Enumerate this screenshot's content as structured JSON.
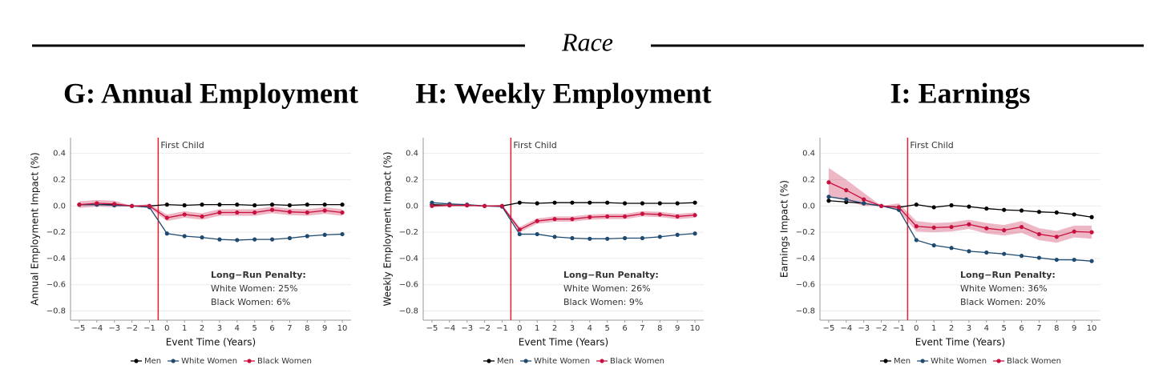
{
  "header": {
    "title": "Race"
  },
  "chart_data": [
    {
      "type": "line",
      "title": "G: Annual Employment",
      "x_label": "Event Time (Years)",
      "y_label": "Annual Employment Impact (%)",
      "x": [
        -5,
        -4,
        -3,
        -2,
        -1,
        0,
        1,
        2,
        3,
        4,
        5,
        6,
        7,
        8,
        9,
        10
      ],
      "xlim": [
        -5.5,
        10.5
      ],
      "ylim": [
        -0.87,
        0.52
      ],
      "xticks": [
        {
          "value": -5,
          "label": "−5"
        },
        {
          "value": -4,
          "label": "−4"
        },
        {
          "value": -3,
          "label": "−3"
        },
        {
          "value": -2,
          "label": "−2"
        },
        {
          "value": -1,
          "label": "−1"
        },
        0,
        1,
        2,
        3,
        4,
        5,
        6,
        7,
        8,
        9,
        10
      ],
      "yticks": [
        {
          "value": -0.8,
          "label": "−0.8"
        },
        {
          "value": -0.6,
          "label": "−0.6"
        },
        {
          "value": -0.4,
          "label": "−0.4"
        },
        {
          "value": -0.2,
          "label": "−0.2"
        },
        {
          "value": 0,
          "label": "0.0"
        },
        0.2,
        0.4
      ],
      "grid": true,
      "legend": "bottom",
      "event_line": {
        "x": -0.5,
        "label": "First Child",
        "color": "#e8202a"
      },
      "annotation": {
        "title": "Long−Run Penalty:",
        "lines": [
          "White Women: 25%",
          "Black Women: 6%"
        ]
      },
      "series": [
        {
          "name": "Men",
          "color": "#000000",
          "values": [
            0.01,
            0.01,
            0.01,
            0,
            0,
            0.01,
            0.005,
            0.01,
            0.01,
            0.01,
            0.005,
            0.01,
            0.005,
            0.01,
            0.01,
            0.01
          ]
        },
        {
          "name": "White Women",
          "color": "#1f4a70",
          "values": [
            0.01,
            0.01,
            0.005,
            0,
            -0.01,
            -0.21,
            -0.23,
            -0.24,
            -0.255,
            -0.26,
            -0.255,
            -0.255,
            -0.245,
            -0.23,
            -0.22,
            -0.215
          ]
        },
        {
          "name": "Black Women",
          "color": "#c8103e",
          "values": [
            0.01,
            0.02,
            0.015,
            0,
            0,
            -0.09,
            -0.065,
            -0.08,
            -0.05,
            -0.05,
            -0.05,
            -0.03,
            -0.045,
            -0.05,
            -0.035,
            -0.05
          ],
          "error": [
            0.025,
            0.025,
            0.025,
            0,
            0.015,
            0.025,
            0.025,
            0.025,
            0.025,
            0.025,
            0.025,
            0.025,
            0.025,
            0.025,
            0.025,
            0.025
          ]
        }
      ]
    },
    {
      "type": "line",
      "title": "H: Weekly Employment",
      "x_label": "Event Time (Years)",
      "y_label": "Weekly Employment Impact (%)",
      "x": [
        -5,
        -4,
        -3,
        -2,
        -1,
        0,
        1,
        2,
        3,
        4,
        5,
        6,
        7,
        8,
        9,
        10
      ],
      "xlim": [
        -5.5,
        10.5
      ],
      "ylim": [
        -0.87,
        0.52
      ],
      "xticks": [
        {
          "value": -5,
          "label": "−5"
        },
        {
          "value": -4,
          "label": "−4"
        },
        {
          "value": -3,
          "label": "−3"
        },
        {
          "value": -2,
          "label": "−2"
        },
        {
          "value": -1,
          "label": "−1"
        },
        0,
        1,
        2,
        3,
        4,
        5,
        6,
        7,
        8,
        9,
        10
      ],
      "yticks": [
        {
          "value": -0.8,
          "label": "−0.8"
        },
        {
          "value": -0.6,
          "label": "−0.6"
        },
        {
          "value": -0.4,
          "label": "−0.4"
        },
        {
          "value": -0.2,
          "label": "−0.2"
        },
        {
          "value": 0,
          "label": "0.0"
        },
        0.2,
        0.4
      ],
      "grid": true,
      "legend": "bottom",
      "event_line": {
        "x": -0.5,
        "label": "First Child",
        "color": "#e8202a"
      },
      "annotation": {
        "title": "Long−Run Penalty:",
        "lines": [
          "White Women: 26%",
          "Black Women: 9%"
        ]
      },
      "series": [
        {
          "name": "Men",
          "color": "#000000",
          "values": [
            0.01,
            0.005,
            0.005,
            0,
            0,
            0.025,
            0.02,
            0.025,
            0.025,
            0.025,
            0.025,
            0.02,
            0.02,
            0.02,
            0.02,
            0.025
          ]
        },
        {
          "name": "White Women",
          "color": "#1f4a70",
          "values": [
            0.025,
            0.015,
            0.01,
            0,
            -0.005,
            -0.215,
            -0.215,
            -0.235,
            -0.245,
            -0.25,
            -0.25,
            -0.245,
            -0.245,
            -0.235,
            -0.22,
            -0.21
          ]
        },
        {
          "name": "Black Women",
          "color": "#c8103e",
          "values": [
            0,
            0.005,
            0.005,
            0,
            0,
            -0.18,
            -0.115,
            -0.1,
            -0.1,
            -0.085,
            -0.08,
            -0.08,
            -0.06,
            -0.065,
            -0.08,
            -0.07
          ],
          "error": [
            0.01,
            0.01,
            0.01,
            0,
            0.01,
            0.02,
            0.02,
            0.02,
            0.02,
            0.02,
            0.02,
            0.02,
            0.02,
            0.02,
            0.02,
            0.02
          ]
        }
      ]
    },
    {
      "type": "line",
      "title": "I: Earnings",
      "x_label": "Event Time (Years)",
      "y_label": "Earnings Impact (%)",
      "x": [
        -5,
        -4,
        -3,
        -2,
        -1,
        0,
        1,
        2,
        3,
        4,
        5,
        6,
        7,
        8,
        9,
        10
      ],
      "xlim": [
        -5.5,
        10.5
      ],
      "ylim": [
        -0.87,
        0.52
      ],
      "xticks": [
        {
          "value": -5,
          "label": "−5"
        },
        {
          "value": -4,
          "label": "−4"
        },
        {
          "value": -3,
          "label": "−3"
        },
        {
          "value": -2,
          "label": "−2"
        },
        {
          "value": -1,
          "label": "−1"
        },
        0,
        1,
        2,
        3,
        4,
        5,
        6,
        7,
        8,
        9,
        10
      ],
      "yticks": [
        {
          "value": -0.8,
          "label": "−0.8"
        },
        {
          "value": -0.6,
          "label": "−0.6"
        },
        {
          "value": -0.4,
          "label": "−0.4"
        },
        {
          "value": -0.2,
          "label": "−0.2"
        },
        {
          "value": 0,
          "label": "0.0"
        },
        0.2,
        0.4
      ],
      "grid": true,
      "legend": "bottom",
      "event_line": {
        "x": -0.5,
        "label": "First Child",
        "color": "#e8202a"
      },
      "annotation": {
        "title": "Long−Run Penalty:",
        "lines": [
          "White Women: 36%",
          "Black Women: 20%"
        ]
      },
      "series": [
        {
          "name": "Men",
          "color": "#000000",
          "values": [
            0.04,
            0.03,
            0.02,
            0,
            -0.01,
            0.01,
            -0.01,
            0.005,
            -0.005,
            -0.02,
            -0.03,
            -0.035,
            -0.045,
            -0.05,
            -0.065,
            -0.085
          ]
        },
        {
          "name": "White Women",
          "color": "#1f4a70",
          "values": [
            0.07,
            0.05,
            0.02,
            0,
            -0.03,
            -0.26,
            -0.3,
            -0.32,
            -0.345,
            -0.355,
            -0.365,
            -0.38,
            -0.395,
            -0.41,
            -0.41,
            -0.42
          ]
        },
        {
          "name": "Black Women",
          "color": "#c8103e",
          "values": [
            0.18,
            0.12,
            0.05,
            0,
            -0.01,
            -0.155,
            -0.165,
            -0.16,
            -0.14,
            -0.17,
            -0.185,
            -0.16,
            -0.215,
            -0.235,
            -0.195,
            -0.2
          ],
          "error": [
            0.11,
            0.08,
            0.05,
            0,
            0.03,
            0.04,
            0.035,
            0.035,
            0.035,
            0.04,
            0.04,
            0.045,
            0.045,
            0.045,
            0.045,
            0.05
          ]
        }
      ]
    }
  ]
}
